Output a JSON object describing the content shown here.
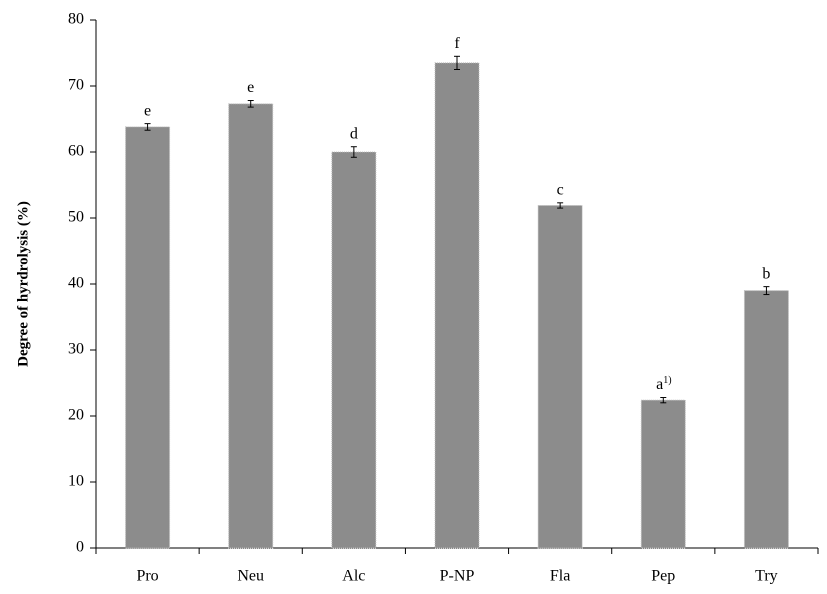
{
  "chart_data": {
    "type": "bar",
    "y_label": "Degree of hyrdrolysis (%)",
    "categories": [
      "Pro",
      "Neu",
      "Alc",
      "P-NP",
      "Fla",
      "Pep",
      "Try"
    ],
    "values": [
      63.8,
      67.3,
      60.0,
      73.5,
      51.9,
      22.4,
      39.0
    ],
    "errors": [
      0.5,
      0.5,
      0.8,
      1.0,
      0.4,
      0.4,
      0.6
    ],
    "letters": [
      "e",
      "e",
      "d",
      "f",
      "c",
      "a",
      "b"
    ],
    "letter_superscripts": [
      null,
      null,
      null,
      null,
      null,
      "1)",
      null
    ],
    "color": "#8c8c8c",
    "ylim": [
      0,
      80
    ],
    "yticks": [
      0,
      10,
      20,
      30,
      40,
      50,
      60,
      70,
      80
    ]
  }
}
